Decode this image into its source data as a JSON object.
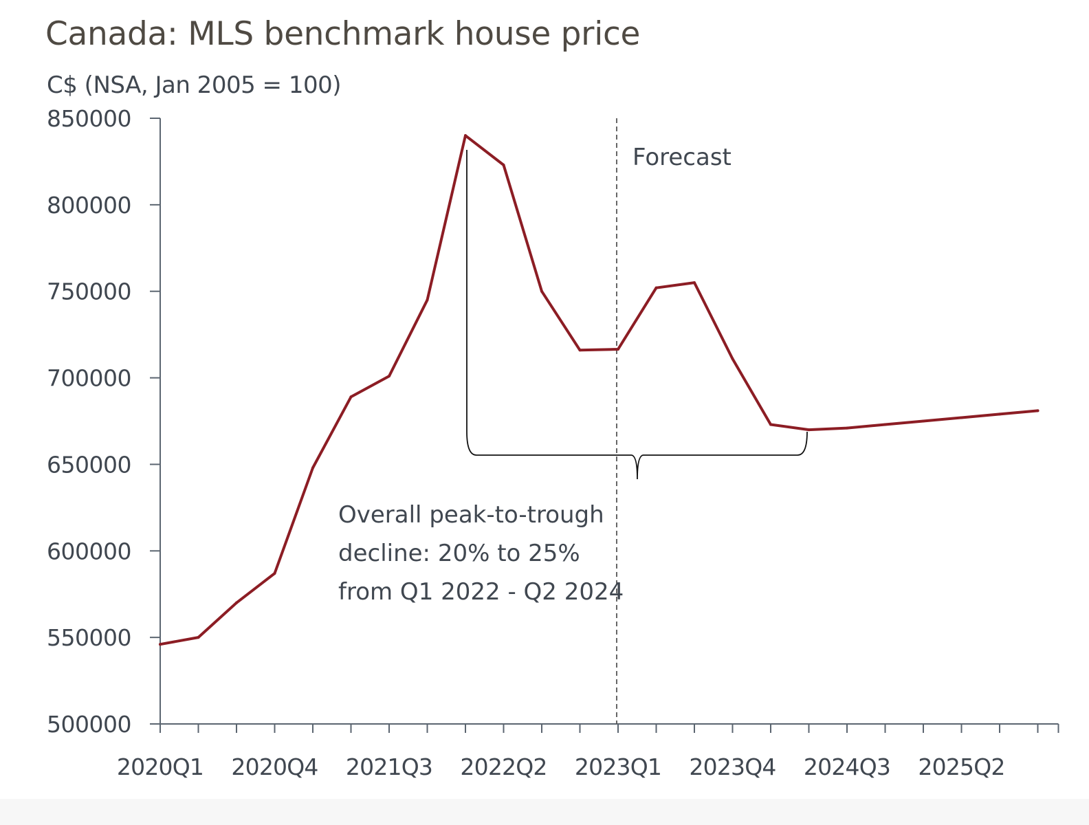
{
  "chart_data": {
    "type": "line",
    "title": "Canada: MLS benchmark house price",
    "ylabel": "C$ (NSA, Jan 2005 = 100)",
    "xlabel": "",
    "ylim": [
      500000,
      850000
    ],
    "yticks": [
      "500000",
      "550000",
      "600000",
      "650000",
      "700000",
      "750000",
      "800000",
      "850000"
    ],
    "x": [
      "2020Q1",
      "2020Q2",
      "2020Q3",
      "2020Q4",
      "2021Q1",
      "2021Q2",
      "2021Q3",
      "2021Q4",
      "2022Q1",
      "2022Q2",
      "2022Q3",
      "2022Q4",
      "2023Q1",
      "2023Q2",
      "2023Q3",
      "2023Q4",
      "2024Q1",
      "2024Q2",
      "2024Q3",
      "2024Q4",
      "2025Q1",
      "2025Q2",
      "2025Q3",
      "2025Q4"
    ],
    "xtick_labels": [
      "2020Q1",
      "2020Q4",
      "2021Q3",
      "2022Q2",
      "2023Q1",
      "2023Q4",
      "2024Q3",
      "2025Q2"
    ],
    "series": [
      {
        "color": "#8c1d24",
        "values": [
          546000,
          550000,
          570000,
          587000,
          648000,
          689000,
          701000,
          745000,
          840000,
          823000,
          750000,
          716000,
          716500,
          752000,
          755000,
          711000,
          673000,
          670000,
          671000,
          673000,
          675000,
          677000,
          679000,
          681000
        ]
      }
    ],
    "forecast_divider": {
      "label": "Forecast",
      "after": "2023Q1"
    },
    "annotation": {
      "lines": [
        "Overall peak-to-trough",
        "decline: 20% to 25%",
        "from Q1 2022 - Q2 2024"
      ]
    },
    "grid": false,
    "legend": "none"
  }
}
